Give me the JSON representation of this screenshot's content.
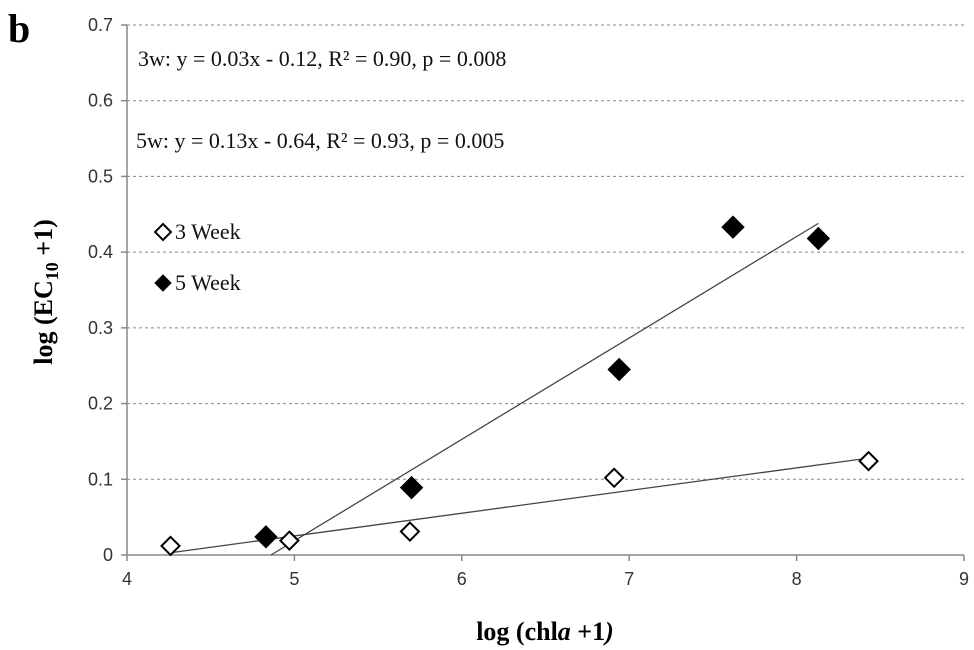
{
  "panel_label": "b",
  "chart_data": {
    "type": "scatter",
    "xlabel": {
      "prefix": "log (chl",
      "italic": "a",
      "suffix": " +1",
      "italic_tail": ")"
    },
    "ylabel": {
      "prefix": "log (EC",
      "sub": "10",
      "suffix": " +1)"
    },
    "xlim": [
      4,
      9
    ],
    "ylim": [
      0,
      0.7
    ],
    "x_ticks": [
      4,
      5,
      6,
      7,
      8,
      9
    ],
    "y_ticks": [
      0,
      0.1,
      0.2,
      0.3,
      0.4,
      0.5,
      0.6,
      0.7
    ],
    "x_tick_labels": [
      "4",
      "5",
      "6",
      "7",
      "8",
      "9"
    ],
    "y_tick_labels": [
      "0",
      "0.1",
      "0.2",
      "0.3",
      "0.4",
      "0.5",
      "0.6",
      "0.7"
    ],
    "grid": "horizontal dashed",
    "legend_placement": "upper-left",
    "series": [
      {
        "name": "3 Week",
        "marker": "open-diamond",
        "x": [
          4.26,
          4.97,
          5.69,
          6.91,
          8.43
        ],
        "y": [
          0.012,
          0.019,
          0.031,
          0.102,
          0.124
        ],
        "fit": {
          "x": [
            4.26,
            8.43
          ],
          "y": [
            0.003,
            0.128
          ]
        }
      },
      {
        "name": "5 Week",
        "marker": "filled-diamond",
        "x": [
          4.83,
          5.7,
          6.94,
          7.62,
          8.13
        ],
        "y": [
          0.024,
          0.089,
          0.245,
          0.433,
          0.418
        ],
        "fit": {
          "x": [
            4.86,
            8.13
          ],
          "y": [
            0.0,
            0.438
          ]
        }
      }
    ],
    "annotations": [
      "3w: y = 0.03x - 0.12, R² = 0.90, p = 0.008",
      "5w: y = 0.13x - 0.64, R² = 0.93, p = 0.005"
    ]
  },
  "colors": {
    "grid": "#888888",
    "axis": "#888888",
    "marker": "#000000",
    "fit": "#444444"
  }
}
